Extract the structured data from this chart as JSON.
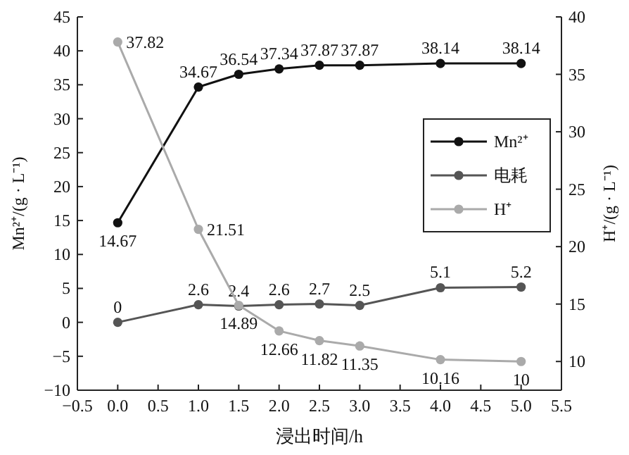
{
  "chart_data": {
    "type": "line",
    "xlabel": "浸出时间/h",
    "ylabel": "Mn²⁺/(g · L⁻¹)",
    "y2label": "H⁺/(g · L⁻¹)",
    "x": [
      0,
      1,
      1.5,
      2,
      2.5,
      3,
      4,
      5
    ],
    "series": [
      {
        "name": "Mn²⁺",
        "color": "#111111",
        "values": [
          14.67,
          34.67,
          36.54,
          37.34,
          37.87,
          37.87,
          38.14,
          38.14
        ]
      },
      {
        "name": "电耗",
        "color": "#555555",
        "values": [
          0,
          2.6,
          2.4,
          2.6,
          2.7,
          2.5,
          5.1,
          5.2
        ]
      },
      {
        "name": "H⁺",
        "color": "#aaaaaa",
        "axis": "y2",
        "values": [
          37.82,
          21.51,
          14.89,
          12.66,
          11.82,
          11.35,
          10.16,
          10
        ]
      }
    ],
    "xlim": [
      -0.5,
      5.5
    ],
    "xticks": [
      {
        "value": -0.5,
        "label": "−0.5"
      },
      {
        "value": 0,
        "label": "0.0"
      },
      {
        "value": 0.5,
        "label": "0.5"
      },
      {
        "value": 1,
        "label": "1.0"
      },
      {
        "value": 1.5,
        "label": "1.5"
      },
      {
        "value": 2,
        "label": "2.0"
      },
      {
        "value": 2.5,
        "label": "2.5"
      },
      {
        "value": 3,
        "label": "3.0"
      },
      {
        "value": 3.5,
        "label": "3.5"
      },
      {
        "value": 4,
        "label": "4.0"
      },
      {
        "value": 4.5,
        "label": "4.5"
      },
      {
        "value": 5,
        "label": "5.0"
      },
      {
        "value": 5.5,
        "label": "5.5"
      }
    ],
    "ylim": [
      -10,
      45
    ],
    "yticks": [
      {
        "value": -10,
        "label": "−10"
      },
      {
        "value": -5,
        "label": "−5"
      },
      0,
      5,
      10,
      15,
      20,
      25,
      30,
      35,
      40,
      45
    ],
    "y2lim": [
      7.5,
      40
    ],
    "y2ticks": [
      10,
      15,
      20,
      25,
      30,
      35,
      40
    ],
    "data_labels": true,
    "marker": "circle",
    "line_style": "solid",
    "legend": "right",
    "grid": false
  }
}
